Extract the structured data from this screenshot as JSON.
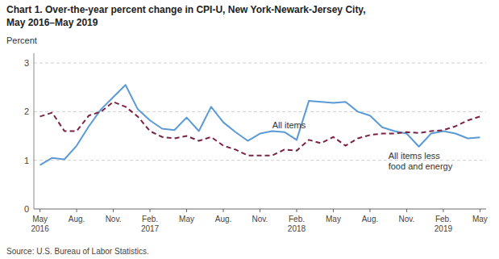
{
  "chart_data": {
    "type": "line",
    "title": "Chart 1. Over-the-year percent change in CPI-U, New York-Newark-Jersey  City,",
    "subtitle": "May 2016–May 2019",
    "y_label": "Percent",
    "source": "Source: U.S. Bureau of Labor Statistics.",
    "categories": [
      "May\n2016",
      null,
      null,
      "Aug.",
      null,
      null,
      "Nov.",
      null,
      null,
      "Feb.\n2017",
      null,
      null,
      "May",
      null,
      null,
      "Aug.",
      null,
      null,
      "Nov.",
      null,
      null,
      "Feb.\n2018",
      null,
      null,
      "May",
      null,
      null,
      "Aug.",
      null,
      null,
      "Nov.",
      null,
      null,
      "Feb.\n2019",
      null,
      null,
      "May"
    ],
    "series": [
      {
        "color": "#5b9bd5",
        "line_style": "solid",
        "values": [
          0.9,
          1.05,
          1.02,
          1.3,
          1.7,
          2.05,
          2.3,
          2.55,
          2.05,
          1.82,
          1.65,
          1.62,
          1.88,
          1.6,
          2.1,
          1.78,
          1.58,
          1.4,
          1.55,
          1.6,
          1.58,
          1.42,
          2.22,
          2.2,
          2.18,
          2.2,
          2.0,
          1.92,
          1.68,
          1.6,
          1.55,
          1.28,
          1.55,
          1.6,
          1.55,
          1.45,
          1.47
        ]
      },
      {
        "color": "#7b2346",
        "line_style": "dashed",
        "values": [
          1.9,
          1.98,
          1.6,
          1.6,
          1.92,
          2.0,
          2.2,
          2.1,
          1.9,
          1.6,
          1.48,
          1.45,
          1.5,
          1.4,
          1.48,
          1.3,
          1.22,
          1.1,
          1.1,
          1.1,
          1.22,
          1.2,
          1.42,
          1.35,
          1.48,
          1.3,
          1.45,
          1.52,
          1.55,
          1.55,
          1.58,
          1.56,
          1.6,
          1.62,
          1.7,
          1.82,
          1.9
        ]
      }
    ],
    "annotations": [
      {
        "text": "All items",
        "x": 19,
        "y": 1.73
      },
      {
        "text": "All items less\nfood and energy",
        "x": 28.5,
        "y": 1.2
      }
    ],
    "ylim": [
      0,
      3.2
    ],
    "yticks": [
      0,
      1,
      2,
      3
    ],
    "grid": true
  }
}
